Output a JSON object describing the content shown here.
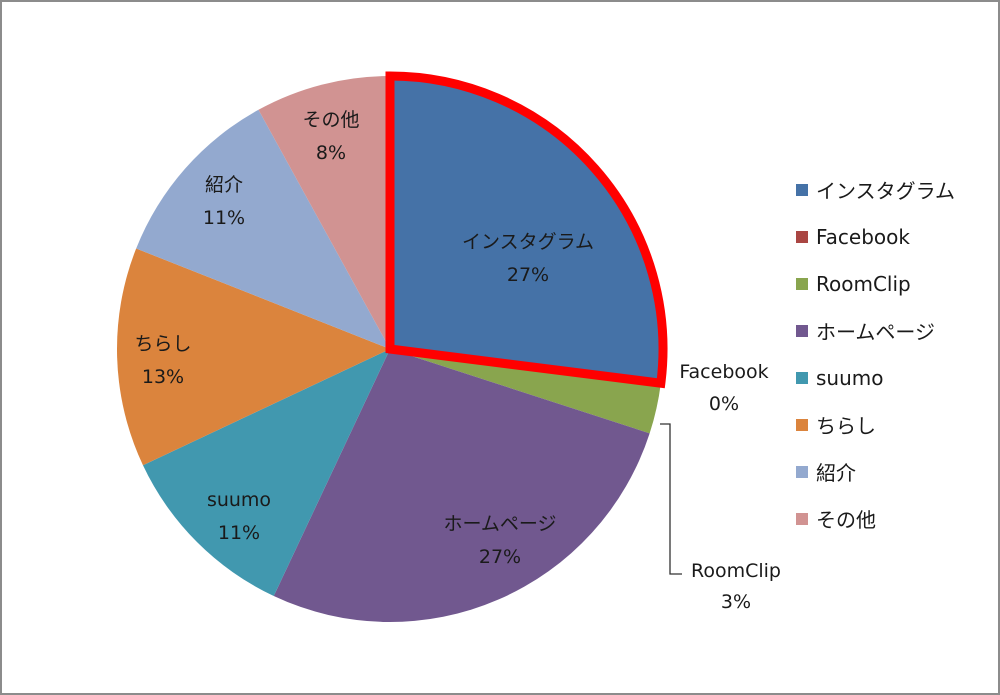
{
  "chart_data": {
    "type": "pie",
    "categories": [
      "インスタグラム",
      "Facebook",
      "RoomClip",
      "ホームページ",
      "suumo",
      "ちらし",
      "紹介",
      "その他"
    ],
    "values": [
      27,
      0,
      3,
      27,
      11,
      13,
      11,
      8
    ],
    "labels": [
      "27%",
      "0%",
      "3%",
      "27%",
      "11%",
      "13%",
      "11%",
      "8%"
    ],
    "colors": [
      "#4572a7",
      "#aa4643",
      "#89a54e",
      "#71588f",
      "#4198af",
      "#db843d",
      "#93a9cf",
      "#d19392"
    ],
    "start_angle": "12 o'clock, clockwise",
    "highlight": {
      "category": "インスタグラム",
      "outline": "#ff0000"
    },
    "legend": "right"
  }
}
